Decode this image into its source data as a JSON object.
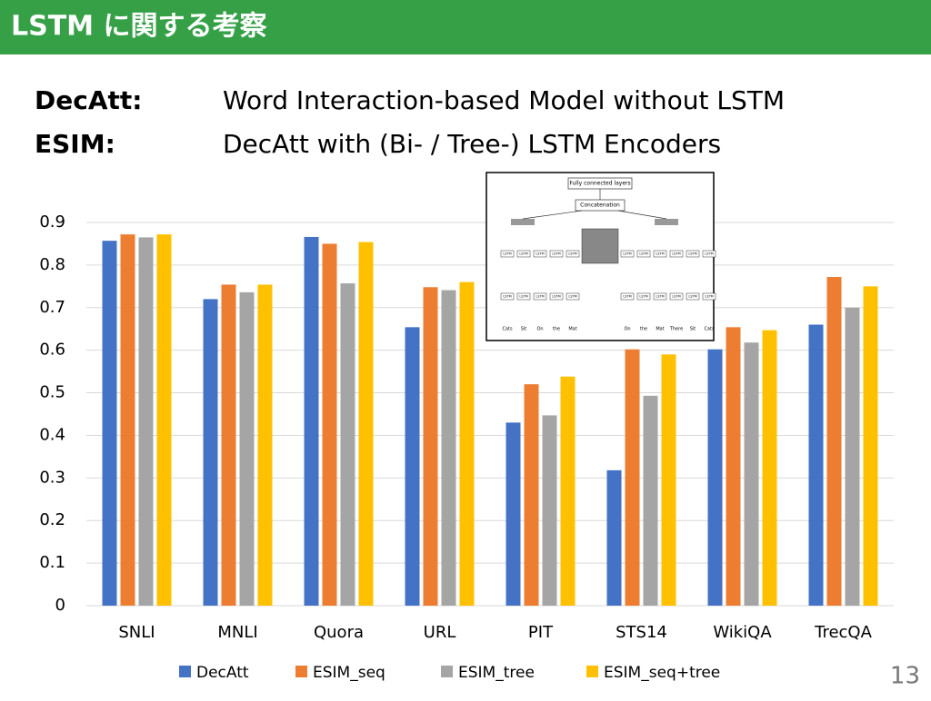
{
  "header": {
    "title": "LSTM に関する考察"
  },
  "definitions": [
    {
      "term": "DecAtt:",
      "text": "Word Interaction-based Model without LSTM"
    },
    {
      "term": "ESIM:",
      "text": "DecAtt with (Bi- / Tree-) LSTM Encoders"
    }
  ],
  "page_number": "13",
  "diagram": {
    "top": "Fully connected layers",
    "middle": "Concatenation",
    "cell": "LSTM",
    "left_words": [
      "Cats",
      "Sit",
      "On",
      "the",
      "Mat"
    ],
    "right_words": [
      "On",
      "the",
      "Mat",
      "There",
      "Sit",
      "Cats"
    ]
  },
  "chart_data": {
    "type": "bar",
    "categories": [
      "SNLI",
      "MNLI",
      "Quora",
      "URL",
      "PIT",
      "STS14",
      "WikiQA",
      "TrecQA"
    ],
    "series": [
      {
        "name": "DecAtt",
        "color": "#4472c4",
        "values": [
          0.857,
          0.72,
          0.866,
          0.654,
          0.43,
          0.318,
          0.602,
          0.66
        ]
      },
      {
        "name": "ESIM_seq",
        "color": "#ed7d31",
        "values": [
          0.872,
          0.754,
          0.85,
          0.748,
          0.52,
          0.602,
          0.654,
          0.772
        ]
      },
      {
        "name": "ESIM_tree",
        "color": "#a5a5a5",
        "values": [
          0.865,
          0.736,
          0.757,
          0.741,
          0.447,
          0.493,
          0.618,
          0.7
        ]
      },
      {
        "name": "ESIM_seq+tree",
        "color": "#ffc000",
        "values": [
          0.872,
          0.754,
          0.854,
          0.76,
          0.538,
          0.59,
          0.647,
          0.75
        ]
      }
    ],
    "ylim": [
      0,
      0.9
    ],
    "yticks": [
      0,
      0.1,
      0.2,
      0.3,
      0.4,
      0.5,
      0.6,
      0.7,
      0.8,
      0.9
    ],
    "grid": true,
    "legend": "bottom"
  }
}
